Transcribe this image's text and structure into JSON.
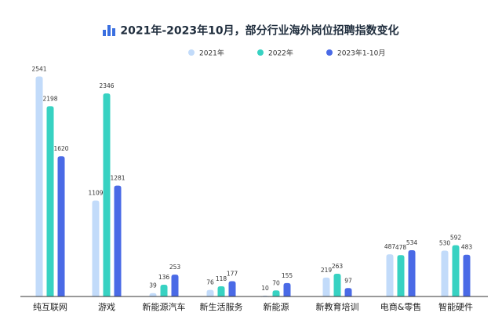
{
  "chart_data": {
    "type": "bar",
    "title": "2021年-2023年10月，部分行业海外岗位招聘指数变化",
    "xlabel": "",
    "ylabel": "",
    "ylim": [
      0,
      2700
    ],
    "grid": false,
    "legend_position": "top",
    "categories": [
      "纯互联网",
      "游戏",
      "新能源汽车",
      "新生活服务",
      "新能源",
      "新教育培训",
      "电商&零售",
      "智能硬件"
    ],
    "series": [
      {
        "name": "2021年",
        "color": "#c2dbfa",
        "values": [
          2541,
          1109,
          39,
          76,
          10,
          219,
          487,
          530
        ]
      },
      {
        "name": "2022年",
        "color": "#37d2c2",
        "values": [
          2198,
          2346,
          136,
          118,
          70,
          263,
          478,
          592
        ]
      },
      {
        "name": "2023年1-10月",
        "color": "#4a6ae6",
        "values": [
          1620,
          1281,
          253,
          177,
          155,
          97,
          534,
          483
        ]
      }
    ]
  },
  "colors": {
    "title": "#1f2d3d",
    "title_icon": "#3a6fe0",
    "axis": "#333333",
    "text": "#333333"
  }
}
